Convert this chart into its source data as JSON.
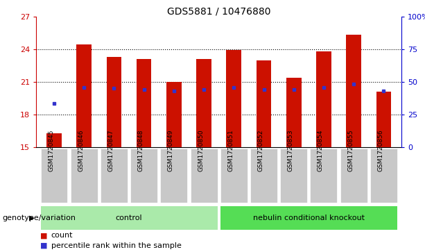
{
  "title": "GDS5881 / 10476880",
  "samples": [
    "GSM1720845",
    "GSM1720846",
    "GSM1720847",
    "GSM1720848",
    "GSM1720849",
    "GSM1720850",
    "GSM1720851",
    "GSM1720852",
    "GSM1720853",
    "GSM1720854",
    "GSM1720855",
    "GSM1720856"
  ],
  "bar_tops": [
    16.3,
    24.4,
    23.3,
    23.1,
    21.0,
    23.1,
    23.9,
    23.0,
    21.4,
    23.8,
    25.3,
    20.1
  ],
  "bar_base": 15,
  "blue_dots_y": [
    19.0,
    20.5,
    20.4,
    20.3,
    20.2,
    20.3,
    20.5,
    20.3,
    20.3,
    20.5,
    20.8,
    20.2
  ],
  "blue_dots_separate": [
    true,
    false,
    false,
    false,
    false,
    false,
    false,
    false,
    false,
    false,
    false,
    false
  ],
  "ylim": [
    15,
    27
  ],
  "yticks_left": [
    15,
    18,
    21,
    24,
    27
  ],
  "yticks_right": [
    0,
    25,
    50,
    75,
    100
  ],
  "ylabel_left_color": "#cc0000",
  "ylabel_right_color": "#0000cc",
  "bar_color": "#cc1100",
  "blue_color": "#3333cc",
  "bar_width": 0.5,
  "control_label": "control",
  "ko_label": "nebulin conditional knockout",
  "group_label": "genotype/variation",
  "legend_count": "count",
  "legend_pct": "percentile rank within the sample",
  "tick_bg": "#c8c8c8",
  "control_bg": "#aaeaaa",
  "ko_bg": "#55dd55",
  "n_control": 6,
  "n_ko": 6
}
